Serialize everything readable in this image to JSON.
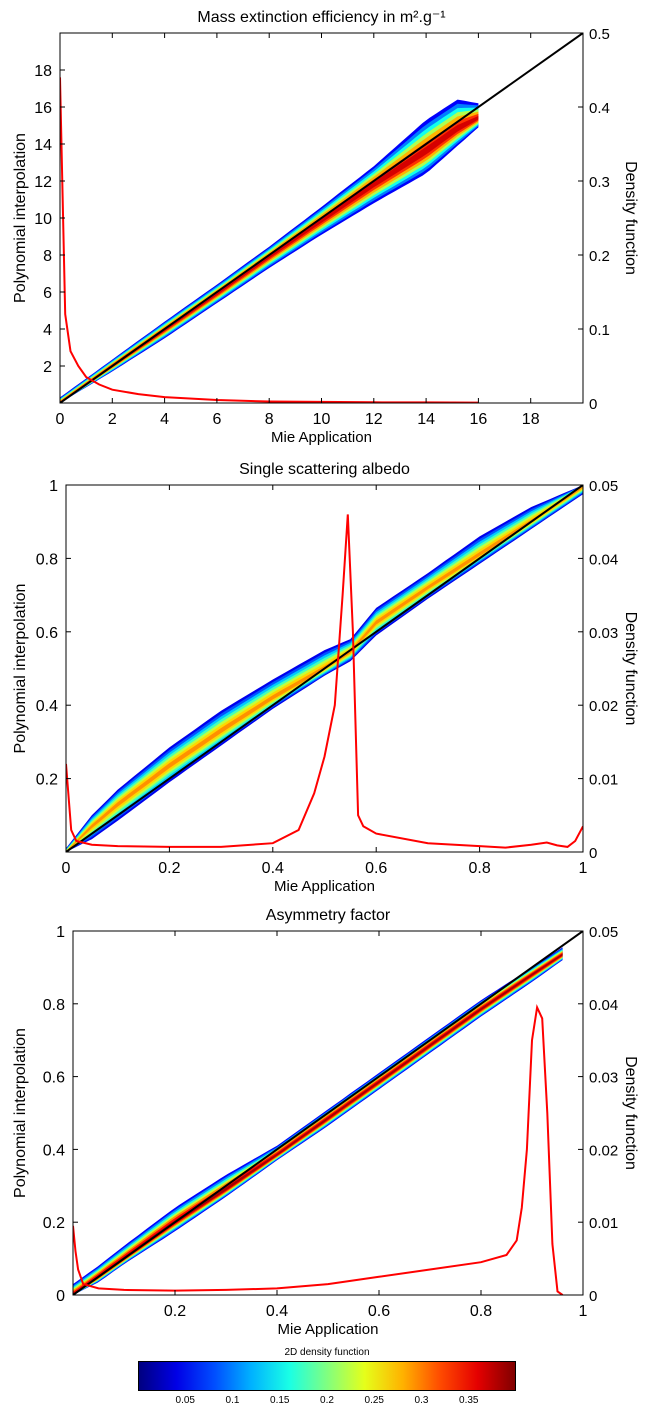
{
  "chart_data": [
    {
      "type": "scatter",
      "title": "Mass extinction efficiency in m².g⁻¹",
      "xlabel": "Mie Application",
      "ylabel": "Polynomial interpolation",
      "y2label": "Density function",
      "xlim": [
        0,
        20
      ],
      "ylim": [
        0,
        20
      ],
      "y2lim": [
        0,
        0.5
      ],
      "xticks": [
        0,
        2,
        4,
        6,
        8,
        10,
        12,
        14,
        16,
        18
      ],
      "xtick_labels": [
        "0",
        "2",
        "4",
        "6",
        "8",
        "10",
        "12",
        "14",
        "16",
        "18"
      ],
      "yticks": [
        2,
        4,
        6,
        8,
        10,
        12,
        14,
        16,
        18
      ],
      "ytick_labels": [
        "2",
        "4",
        "6",
        "8",
        "10",
        "12",
        "14",
        "16",
        "18"
      ],
      "y2ticks": [
        0,
        0.1,
        0.2,
        0.3,
        0.4,
        0.5
      ],
      "y2tick_labels": [
        "0",
        "0.1",
        "0.2",
        "0.3",
        "0.4",
        "0.5"
      ],
      "identity_line": [
        [
          0,
          0
        ],
        [
          20,
          20
        ]
      ],
      "density_curve": {
        "x": [
          0,
          0.1,
          0.2,
          0.4,
          0.7,
          1.0,
          1.5,
          2.0,
          3.0,
          4.0,
          6.0,
          8.0,
          10.0,
          12.0,
          14.0,
          16.0
        ],
        "y": [
          0.44,
          0.28,
          0.12,
          0.07,
          0.05,
          0.035,
          0.025,
          0.018,
          0.012,
          0.008,
          0.004,
          0.002,
          0.0015,
          0.001,
          0.0008,
          0.0005
        ]
      },
      "density_band": {
        "x": [
          0,
          2,
          4,
          6,
          8,
          10,
          12,
          14,
          15.2,
          16.0
        ],
        "center": [
          0,
          2.0,
          3.95,
          5.9,
          7.9,
          9.85,
          11.8,
          13.6,
          14.8,
          15.4
        ],
        "upper": [
          0.3,
          2.35,
          4.4,
          6.4,
          8.45,
          10.6,
          12.8,
          15.3,
          16.4,
          16.2
        ],
        "lower": [
          0,
          1.7,
          3.5,
          5.4,
          7.3,
          9.1,
          10.8,
          12.4,
          13.9,
          14.9
        ],
        "peak": 0.38
      },
      "grid": false
    },
    {
      "type": "scatter",
      "title": "Single scattering albedo",
      "xlabel": "Mie Application",
      "ylabel": "Polynomial interpolation",
      "y2label": "Density function",
      "xlim": [
        0,
        1
      ],
      "ylim": [
        0,
        1
      ],
      "y2lim": [
        0,
        0.05
      ],
      "xticks": [
        0,
        0.2,
        0.4,
        0.6,
        0.8,
        1
      ],
      "xtick_labels": [
        "0",
        "0.2",
        "0.4",
        "0.6",
        "0.8",
        "1"
      ],
      "yticks": [
        0.2,
        0.4,
        0.6,
        0.8,
        1
      ],
      "ytick_labels": [
        "0.2",
        "0.4",
        "0.6",
        "0.8",
        "1"
      ],
      "y2ticks": [
        0,
        0.01,
        0.02,
        0.03,
        0.04,
        0.05
      ],
      "y2tick_labels": [
        "0",
        "0.01",
        "0.02",
        "0.03",
        "0.04",
        "0.05"
      ],
      "identity_line": [
        [
          0,
          0
        ],
        [
          1,
          1
        ]
      ],
      "density_curve": {
        "x": [
          0.0,
          0.01,
          0.02,
          0.05,
          0.1,
          0.2,
          0.3,
          0.4,
          0.45,
          0.48,
          0.5,
          0.52,
          0.535,
          0.545,
          0.555,
          0.565,
          0.575,
          0.6,
          0.7,
          0.8,
          0.85,
          0.9,
          0.93,
          0.95,
          0.97,
          0.985,
          1.0
        ],
        "y": [
          0.012,
          0.003,
          0.0015,
          0.001,
          0.0008,
          0.0007,
          0.0007,
          0.0012,
          0.003,
          0.008,
          0.013,
          0.02,
          0.035,
          0.046,
          0.03,
          0.005,
          0.0035,
          0.0025,
          0.0012,
          0.0008,
          0.0006,
          0.001,
          0.0013,
          0.0009,
          0.0007,
          0.0015,
          0.0035
        ]
      },
      "density_band": {
        "x": [
          0.0,
          0.05,
          0.1,
          0.2,
          0.3,
          0.4,
          0.5,
          0.55,
          0.6,
          0.7,
          0.8,
          0.9,
          1.0
        ],
        "center": [
          0.0,
          0.07,
          0.13,
          0.235,
          0.33,
          0.42,
          0.5,
          0.545,
          0.625,
          0.72,
          0.81,
          0.9,
          0.995
        ],
        "upper": [
          0.01,
          0.1,
          0.17,
          0.285,
          0.385,
          0.47,
          0.55,
          0.58,
          0.665,
          0.76,
          0.86,
          0.94,
          1.0
        ],
        "lower": [
          0.0,
          0.035,
          0.085,
          0.19,
          0.29,
          0.39,
          0.48,
          0.52,
          0.59,
          0.69,
          0.785,
          0.88,
          0.975
        ],
        "peak": 0.3
      },
      "grid": false
    },
    {
      "type": "scatter",
      "title": "Asymmetry factor",
      "xlabel": "Mie Application",
      "ylabel": "Polynomial interpolation",
      "y2label": "Density function",
      "xlim": [
        0,
        1
      ],
      "ylim": [
        0,
        1
      ],
      "y2lim": [
        0,
        0.05
      ],
      "xticks": [
        0.2,
        0.4,
        0.6,
        0.8,
        1
      ],
      "xtick_labels": [
        "0.2",
        "0.4",
        "0.6",
        "0.8",
        "1"
      ],
      "yticks": [
        0,
        0.2,
        0.4,
        0.6,
        0.8,
        1
      ],
      "ytick_labels": [
        "0",
        "0.2",
        "0.4",
        "0.6",
        "0.8",
        "1"
      ],
      "y2ticks": [
        0,
        0.01,
        0.02,
        0.03,
        0.04,
        0.05
      ],
      "y2tick_labels": [
        "0",
        "0.01",
        "0.02",
        "0.03",
        "0.04",
        "0.05"
      ],
      "identity_line": [
        [
          0,
          0
        ],
        [
          1,
          1
        ]
      ],
      "density_curve": {
        "x": [
          0.0,
          0.005,
          0.01,
          0.02,
          0.05,
          0.1,
          0.2,
          0.3,
          0.4,
          0.5,
          0.6,
          0.7,
          0.8,
          0.85,
          0.87,
          0.88,
          0.89,
          0.9,
          0.91,
          0.92,
          0.93,
          0.94,
          0.95,
          0.96
        ],
        "y": [
          0.0095,
          0.006,
          0.0035,
          0.0015,
          0.0009,
          0.0007,
          0.0006,
          0.0007,
          0.0009,
          0.0015,
          0.0025,
          0.0035,
          0.0045,
          0.0055,
          0.0075,
          0.012,
          0.02,
          0.035,
          0.0395,
          0.038,
          0.025,
          0.007,
          0.0005,
          0.0
        ]
      },
      "density_band": {
        "x": [
          0.0,
          0.05,
          0.1,
          0.2,
          0.3,
          0.4,
          0.5,
          0.6,
          0.7,
          0.8,
          0.9,
          0.96
        ],
        "center": [
          0.0,
          0.05,
          0.1,
          0.2,
          0.29,
          0.385,
          0.485,
          0.585,
          0.685,
          0.785,
          0.88,
          0.935
        ],
        "upper": [
          0.03,
          0.08,
          0.135,
          0.24,
          0.33,
          0.41,
          0.51,
          0.61,
          0.71,
          0.81,
          0.9,
          0.955
        ],
        "lower": [
          0.0,
          0.035,
          0.085,
          0.175,
          0.27,
          0.37,
          0.465,
          0.565,
          0.665,
          0.765,
          0.86,
          0.92
        ],
        "peak": 0.4
      },
      "grid": false
    }
  ],
  "colorbar": {
    "title": "2D density function",
    "range": [
      0,
      0.4
    ],
    "ticks": [
      0.05,
      0.1,
      0.15,
      0.2,
      0.25,
      0.3,
      0.35
    ],
    "tick_labels": [
      "0.05",
      "0.1",
      "0.15",
      "0.2",
      "0.25",
      "0.3",
      "0.35"
    ],
    "colormap": "jet"
  },
  "colors": {
    "density_curve": "#ff0000",
    "identity_line": "#000000",
    "band_outer": "#1a1aa8",
    "band_core": "#c21010"
  }
}
